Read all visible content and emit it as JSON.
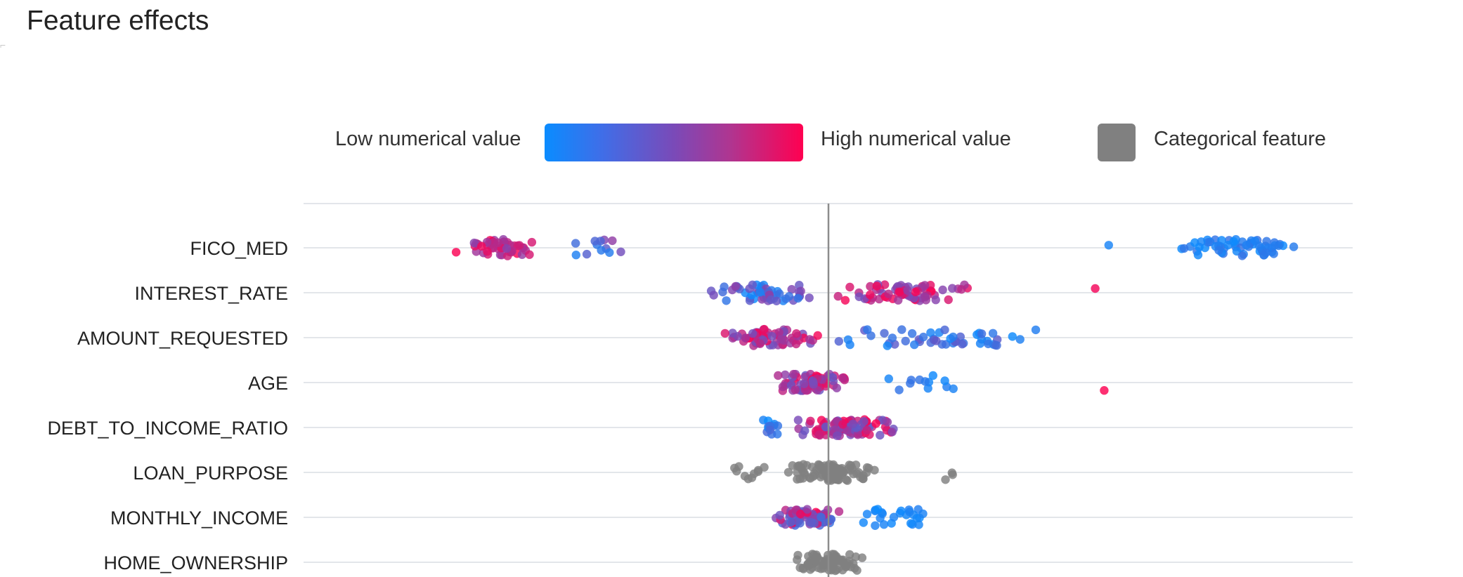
{
  "page": {
    "title": "Feature effects"
  },
  "legend": {
    "low_label": "Low numerical value",
    "high_label": "High numerical value",
    "categorical_label": "Categorical feature",
    "low_color": "#0a8cff",
    "high_color": "#ff0051",
    "categorical_color": "#808080"
  },
  "chart_data": {
    "type": "scatter",
    "title": "Feature effects",
    "xlabel": "",
    "ylabel": "",
    "x_range": [
      -1.0,
      1.25
    ],
    "center_line": 0,
    "grid": true,
    "legend_position": "top",
    "features": [
      {
        "name": "FICO_MED",
        "kind": "numerical",
        "clusters": [
          {
            "min": -0.84,
            "max": -0.64,
            "count": 50,
            "color_min": 0.55,
            "color_max": 1.0
          },
          {
            "min": -0.66,
            "max": -0.37,
            "count": 12,
            "color_min": 0.0,
            "color_max": 0.6
          },
          {
            "min": 0.62,
            "max": 0.63,
            "count": 1,
            "color_min": 0.0,
            "color_max": 0.1
          },
          {
            "min": 0.74,
            "max": 1.1,
            "count": 60,
            "color_min": 0.0,
            "color_max": 0.2
          }
        ]
      },
      {
        "name": "INTEREST_RATE",
        "kind": "numerical",
        "clusters": [
          {
            "min": -0.31,
            "max": 0.0,
            "count": 55,
            "color_min": 0.0,
            "color_max": 0.6
          },
          {
            "min": 0.0,
            "max": 0.34,
            "count": 70,
            "color_min": 0.45,
            "color_max": 1.0
          },
          {
            "min": 0.59,
            "max": 0.6,
            "count": 1,
            "color_min": 0.95,
            "color_max": 1.0
          }
        ]
      },
      {
        "name": "AMOUNT_REQUESTED",
        "kind": "numerical",
        "clusters": [
          {
            "min": -0.26,
            "max": 0.0,
            "count": 70,
            "color_min": 0.45,
            "color_max": 1.0
          },
          {
            "min": 0.0,
            "max": 0.52,
            "count": 50,
            "color_min": 0.0,
            "color_max": 0.4
          }
        ]
      },
      {
        "name": "AGE",
        "kind": "numerical",
        "clusters": [
          {
            "min": -0.15,
            "max": 0.08,
            "count": 70,
            "color_min": 0.4,
            "color_max": 1.0
          },
          {
            "min": 0.08,
            "max": 0.3,
            "count": 12,
            "color_min": 0.0,
            "color_max": 0.2
          },
          {
            "min": 0.61,
            "max": 0.62,
            "count": 1,
            "color_min": 0.95,
            "color_max": 1.0
          }
        ]
      },
      {
        "name": "DEBT_TO_INCOME_RATIO",
        "kind": "numerical",
        "clusters": [
          {
            "min": -0.17,
            "max": -0.1,
            "count": 12,
            "color_min": 0.0,
            "color_max": 0.3
          },
          {
            "min": -0.1,
            "max": 0.18,
            "count": 90,
            "color_min": 0.35,
            "color_max": 1.0
          }
        ]
      },
      {
        "name": "LOAN_PURPOSE",
        "kind": "categorical",
        "clusters": [
          {
            "min": -0.22,
            "max": -0.11,
            "count": 10,
            "color_min": 0,
            "color_max": 0
          },
          {
            "min": -0.11,
            "max": 0.13,
            "count": 90,
            "color_min": 0,
            "color_max": 0
          },
          {
            "min": 0.25,
            "max": 0.29,
            "count": 3,
            "color_min": 0,
            "color_max": 0
          }
        ]
      },
      {
        "name": "MONTHLY_INCOME",
        "kind": "numerical",
        "clusters": [
          {
            "min": -0.13,
            "max": 0.04,
            "count": 70,
            "color_min": 0.2,
            "color_max": 1.0
          },
          {
            "min": 0.04,
            "max": 0.27,
            "count": 25,
            "color_min": 0.0,
            "color_max": 0.1
          }
        ]
      },
      {
        "name": "HOME_OWNERSHIP",
        "kind": "categorical",
        "clusters": [
          {
            "min": -0.11,
            "max": 0.1,
            "count": 80,
            "color_min": 0,
            "color_max": 0
          }
        ]
      }
    ]
  }
}
